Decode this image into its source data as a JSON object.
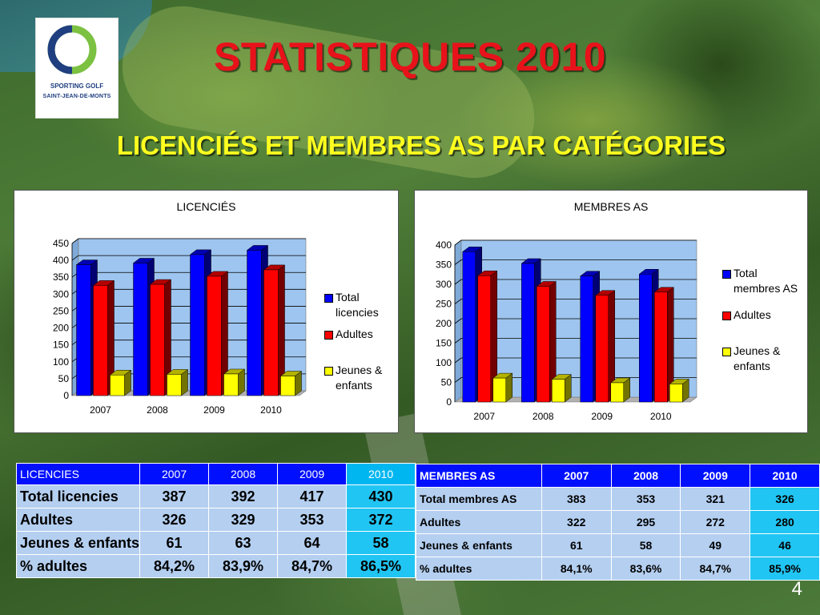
{
  "slide": {
    "title": "STATISTIQUES 2010",
    "subtitle": "LICENCIÉS ET MEMBRES AS PAR CATÉGORIES",
    "page_number": "4",
    "logo": {
      "name": "SPORTING GOLF",
      "place": "SAINT-JEAN-DE-MONTS"
    }
  },
  "colors": {
    "total": "#0000ff",
    "adultes": "#ff0000",
    "jeunes": "#ffff00",
    "plot_bg": "#9ec5ef",
    "title_red": "#e8121a",
    "subtitle_yellow": "#ffff1f"
  },
  "chart_data": [
    {
      "type": "bar",
      "title": "LICENCIÉS",
      "categories": [
        "2007",
        "2008",
        "2009",
        "2010"
      ],
      "series": [
        {
          "name": "Total licencies",
          "values": [
            387,
            392,
            417,
            430
          ],
          "color": "#0000ff"
        },
        {
          "name": "Adultes",
          "values": [
            326,
            329,
            353,
            372
          ],
          "color": "#ff0000"
        },
        {
          "name": "Jeunes & enfants",
          "values": [
            61,
            63,
            64,
            58
          ],
          "color": "#ffff00"
        }
      ],
      "ylim": [
        0,
        450
      ],
      "yticks": [
        "0",
        "50",
        "100",
        "150",
        "200",
        "250",
        "300",
        "350",
        "400",
        "450"
      ],
      "grid": true,
      "legend": "right"
    },
    {
      "type": "bar",
      "title": "MEMBRES AS",
      "categories": [
        "2007",
        "2008",
        "2009",
        "2010"
      ],
      "series": [
        {
          "name": "Total membres AS",
          "values": [
            383,
            353,
            321,
            326
          ],
          "color": "#0000ff"
        },
        {
          "name": "Adultes",
          "values": [
            322,
            295,
            272,
            280
          ],
          "color": "#ff0000"
        },
        {
          "name": "Jeunes & enfants",
          "values": [
            61,
            58,
            49,
            46
          ],
          "color": "#ffff00"
        }
      ],
      "ylim": [
        0,
        400
      ],
      "yticks": [
        "0",
        "50",
        "100",
        "150",
        "200",
        "250",
        "300",
        "350",
        "400"
      ],
      "grid": true,
      "legend": "right"
    }
  ],
  "legend1": {
    "total": "Total licencies",
    "adultes": "Adultes",
    "jeunes": "Jeunes & enfants"
  },
  "legend2": {
    "total": "Total membres AS",
    "adultes": "Adultes",
    "jeunes": "Jeunes & enfants"
  },
  "table_licences": {
    "header": [
      "LICENCIES",
      "2007",
      "2008",
      "2009",
      "2010"
    ],
    "rows": [
      [
        "Total licencies",
        "387",
        "392",
        "417",
        "430"
      ],
      [
        "Adultes",
        "326",
        "329",
        "353",
        "372"
      ],
      [
        "Jeunes & enfants",
        "61",
        "63",
        "64",
        "58"
      ],
      [
        "% adultes",
        "84,2%",
        "83,9%",
        "84,7%",
        "86,5%"
      ]
    ]
  },
  "table_membres": {
    "header": [
      "MEMBRES AS",
      "2007",
      "2008",
      "2009",
      "2010"
    ],
    "rows": [
      [
        "Total membres AS",
        "383",
        "353",
        "321",
        "326"
      ],
      [
        "Adultes",
        "322",
        "295",
        "272",
        "280"
      ],
      [
        "Jeunes & enfants",
        "61",
        "58",
        "49",
        "46"
      ],
      [
        "% adultes",
        "84,1%",
        "83,6%",
        "84,7%",
        "85,9%"
      ]
    ]
  }
}
